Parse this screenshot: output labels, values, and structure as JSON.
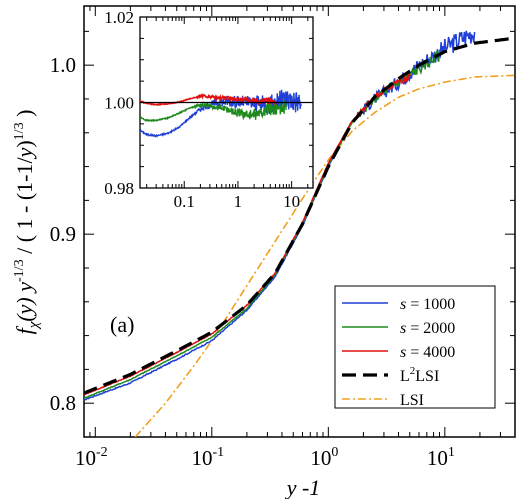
{
  "chart_data": [
    {
      "type": "line",
      "panel_label": "(a)",
      "xlabel": "y -1",
      "ylabel": "f_χ(y) y^-1/3 / ( 1 - (1-1/y)^1/3 )",
      "xscale": "log",
      "xlim": [
        0.008,
        40
      ],
      "ylim": [
        0.78,
        1.035
      ],
      "x_ticks": [
        0.01,
        0.1,
        1,
        10
      ],
      "x_tick_labels": [
        [
          "10",
          "-2"
        ],
        [
          "10",
          "-1"
        ],
        [
          "10",
          "0"
        ],
        [
          "10",
          "1"
        ]
      ],
      "y_ticks": [
        0.8,
        0.9,
        1.0
      ],
      "y_tick_labels": [
        "0.8",
        "0.9",
        "1.0"
      ],
      "legend_position": "lower-right",
      "series": [
        {
          "name": "s = 1000",
          "label_italic": "s",
          "label_rest": " = 1000",
          "color": "#1f3fd6",
          "style": "solid",
          "x": [
            0.008,
            0.02,
            0.05,
            0.1,
            0.2,
            0.35,
            0.6,
            1.0,
            1.6,
            2.5,
            4,
            6,
            10,
            18
          ],
          "y": [
            0.802,
            0.812,
            0.826,
            0.837,
            0.855,
            0.875,
            0.905,
            0.94,
            0.967,
            0.98,
            0.99,
            1.0,
            1.01,
            1.02
          ],
          "noise": 0.006
        },
        {
          "name": "s = 2000",
          "label_italic": "s",
          "label_rest": " = 2000",
          "color": "#1e8a1e",
          "style": "solid",
          "x": [
            0.008,
            0.02,
            0.05,
            0.1,
            0.2,
            0.35,
            0.6,
            1.0,
            1.6,
            2.5,
            4,
            6,
            9
          ],
          "y": [
            0.803,
            0.814,
            0.828,
            0.839,
            0.856,
            0.876,
            0.906,
            0.941,
            0.966,
            0.98,
            0.99,
            0.998,
            1.006
          ],
          "noise": 0.004
        },
        {
          "name": "s = 4000",
          "label_italic": "s",
          "label_rest": " = 4000",
          "color": "#e01010",
          "style": "solid",
          "x": [
            0.008,
            0.02,
            0.05,
            0.1,
            0.2,
            0.35,
            0.6,
            1.0,
            1.6,
            2.5,
            4,
            5
          ],
          "y": [
            0.805,
            0.816,
            0.83,
            0.841,
            0.858,
            0.877,
            0.907,
            0.942,
            0.967,
            0.981,
            0.99,
            0.994
          ],
          "noise": 0.003
        },
        {
          "name": "L²LSI",
          "label_rest": "L",
          "label_sup": "2",
          "label_after": "LSI",
          "color": "#000000",
          "style": "dashed",
          "x": [
            0.008,
            0.02,
            0.05,
            0.1,
            0.2,
            0.35,
            0.6,
            1.0,
            1.6,
            2.5,
            4,
            6,
            10,
            18,
            40
          ],
          "y": [
            0.806,
            0.817,
            0.831,
            0.842,
            0.858,
            0.877,
            0.906,
            0.94,
            0.966,
            0.981,
            0.992,
            1.0,
            1.008,
            1.013,
            1.016
          ]
        },
        {
          "name": "LSI",
          "label_rest": "LSI",
          "color": "#f0a020",
          "style": "dashdot",
          "x": [
            0.022,
            0.04,
            0.07,
            0.1,
            0.15,
            0.25,
            0.4,
            0.6,
            1.0,
            1.6,
            2.5,
            4,
            6,
            10,
            18,
            40
          ],
          "y": [
            0.78,
            0.8,
            0.822,
            0.837,
            0.856,
            0.88,
            0.902,
            0.921,
            0.944,
            0.961,
            0.972,
            0.981,
            0.986,
            0.99,
            0.993,
            0.994
          ]
        }
      ]
    },
    {
      "type": "line",
      "role": "inset",
      "xscale": "log",
      "xlim": [
        0.015,
        25
      ],
      "ylim": [
        0.98,
        1.02
      ],
      "x_ticks": [
        0.1,
        1,
        10
      ],
      "x_tick_labels": [
        "0.1",
        "1",
        "10"
      ],
      "y_ticks": [
        0.98,
        1.0,
        1.02
      ],
      "y_tick_labels": [
        "0.98",
        "1.00",
        "1.02"
      ],
      "reference_line": 1.0,
      "series": [
        {
          "name": "s = 1000",
          "color": "#1f3fd6",
          "x": [
            0.015,
            0.02,
            0.03,
            0.05,
            0.08,
            0.12,
            0.2,
            0.35,
            0.6,
            1.0,
            2,
            4,
            8,
            15
          ],
          "y": [
            0.9935,
            0.9925,
            0.9922,
            0.9928,
            0.9942,
            0.9962,
            0.9985,
            0.9998,
            1.0003,
            1.0002,
            0.9998,
            0.9995,
            1.001,
            1.0
          ],
          "noise": 0.0008,
          "noise_tail": 0.006
        },
        {
          "name": "s = 2000",
          "color": "#1e8a1e",
          "x": [
            0.015,
            0.02,
            0.03,
            0.05,
            0.08,
            0.12,
            0.2,
            0.35,
            0.6,
            1.0,
            2,
            4,
            8
          ],
          "y": [
            0.9965,
            0.9958,
            0.9958,
            0.9964,
            0.9975,
            0.9986,
            0.9995,
            0.999,
            0.9985,
            0.9975,
            0.997,
            0.9985,
            0.999
          ],
          "noise": 0.0006,
          "noise_tail": 0.004
        },
        {
          "name": "s = 4000",
          "color": "#e01010",
          "x": [
            0.015,
            0.02,
            0.03,
            0.05,
            0.08,
            0.12,
            0.2,
            0.35,
            0.6,
            1.0,
            2,
            4,
            5
          ],
          "y": [
            1.0003,
            0.9998,
            0.9995,
            0.9997,
            1.0001,
            1.0008,
            1.0015,
            1.0013,
            1.001,
            1.0008,
            1.0005,
            1.0003,
            1.0005
          ],
          "noise": 0.0005,
          "noise_tail": 0.002
        }
      ]
    }
  ]
}
